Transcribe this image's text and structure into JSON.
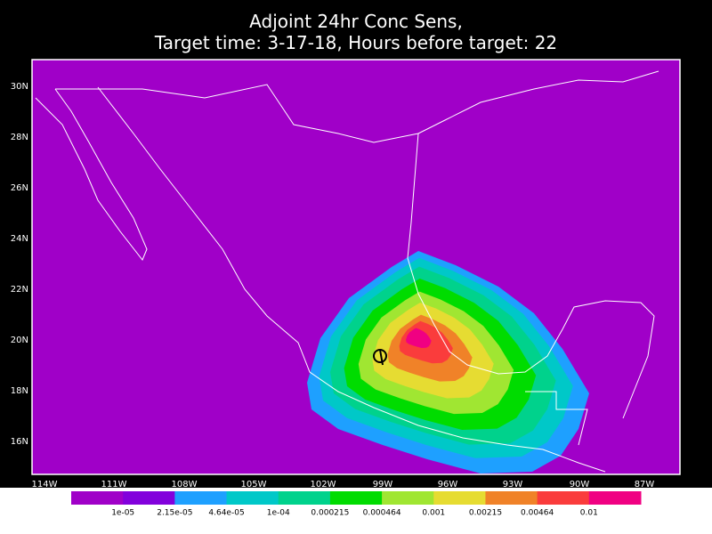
{
  "title": [
    "Adjoint 24hr Conc Sens,",
    "Target time: 3-17-18, Hours before target: 22"
  ],
  "map": {
    "lat_labels": [
      "30N",
      "28N",
      "26N",
      "24N",
      "22N",
      "20N",
      "18N",
      "16N"
    ],
    "lon_labels": [
      "114W",
      "111W",
      "108W",
      "105W",
      "102W",
      "99W",
      "96W",
      "93W",
      "90W",
      "87W"
    ]
  },
  "colorbar": {
    "colors": [
      "#a000c8",
      "#8200dc",
      "#1ea0ff",
      "#00c8c8",
      "#00d28c",
      "#00dc00",
      "#a0e632",
      "#e6dc32",
      "#f08228",
      "#fa3c3c",
      "#f00082"
    ],
    "labels": [
      "1e-05",
      "2.15e-05",
      "4.64e-05",
      "1e-04",
      "0.000215",
      "0.000464",
      "0.001",
      "0.00215",
      "0.00464",
      "0.01"
    ]
  }
}
